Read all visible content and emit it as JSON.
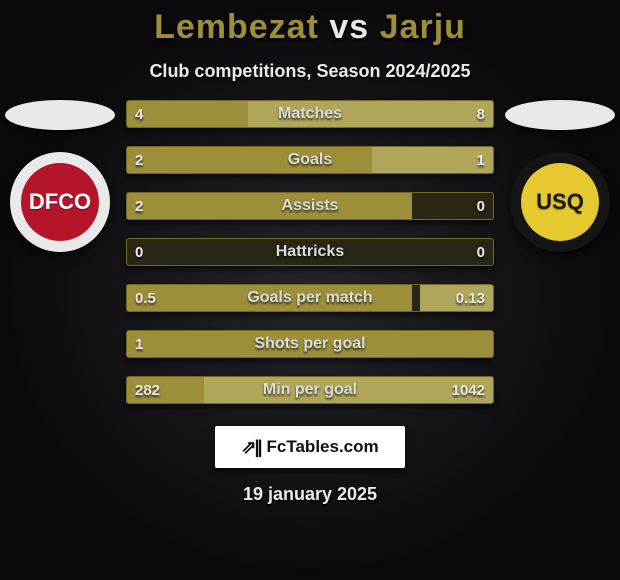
{
  "title": {
    "player1": "Lembezat",
    "vs": "vs",
    "player2": "Jarju",
    "player1_color": "#9d8f3a",
    "vs_color": "#e8e8e8",
    "player2_color": "#9d8f3a"
  },
  "subtitle": "Club competitions, Season 2024/2025",
  "avatars": {
    "left": {
      "top_ellipse_color": "#e9e9ea",
      "badge_wrap_color": "#e9e9ea",
      "badge_inner_color": "#b4152b",
      "badge_text": "DFCO",
      "badge_text_color": "#ffffff"
    },
    "right": {
      "top_ellipse_color": "#e9e9ea",
      "badge_wrap_color": "#151515",
      "badge_inner_color": "#e5c92e",
      "badge_text": "USQ",
      "badge_text_color": "#1a1a1a"
    }
  },
  "bars": {
    "left_color": "#9d8f3a",
    "right_color": "#b0a65a",
    "track_color": "#2a2616",
    "label_color": "#d7dcdc",
    "value_color": "#e8e8e8"
  },
  "stats": [
    {
      "label": "Matches",
      "left_val": "4",
      "right_val": "8",
      "left_w": 33,
      "right_w": 67
    },
    {
      "label": "Goals",
      "left_val": "2",
      "right_val": "1",
      "left_w": 67,
      "right_w": 33
    },
    {
      "label": "Assists",
      "left_val": "2",
      "right_val": "0",
      "left_w": 78,
      "right_w": 0
    },
    {
      "label": "Hattricks",
      "left_val": "0",
      "right_val": "0",
      "left_w": 0,
      "right_w": 0
    },
    {
      "label": "Goals per match",
      "left_val": "0.5",
      "right_val": "0.13",
      "left_w": 78,
      "right_w": 20
    },
    {
      "label": "Shots per goal",
      "left_val": "1",
      "right_val": "",
      "left_w": 100,
      "right_w": 0
    },
    {
      "label": "Min per goal",
      "left_val": "282",
      "right_val": "1042",
      "left_w": 21,
      "right_w": 79
    }
  ],
  "watermark": {
    "icon": "⇗||",
    "text": "FcTables.com"
  },
  "date": "19 january 2025"
}
